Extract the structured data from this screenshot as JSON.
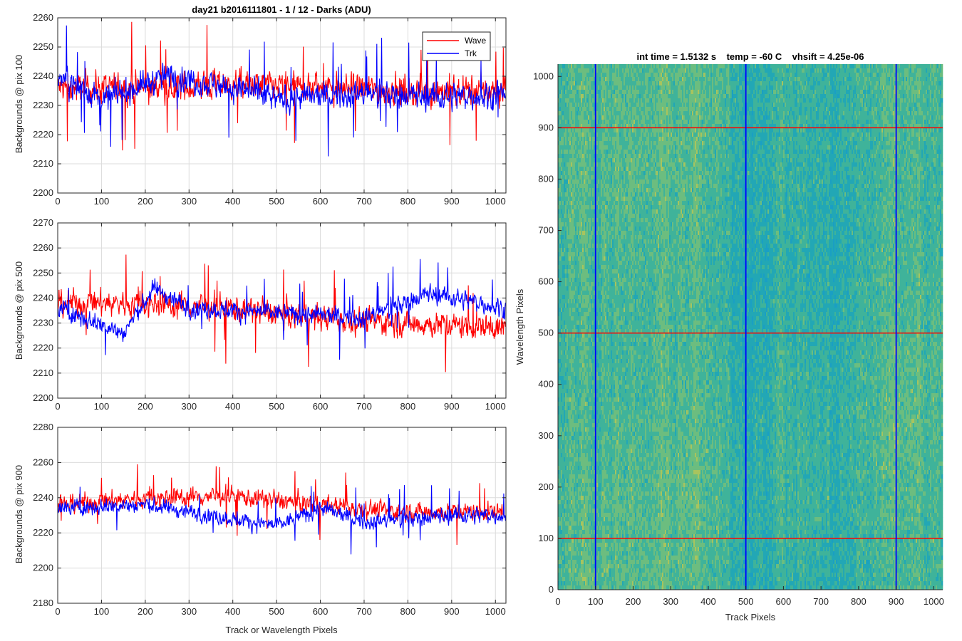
{
  "chart_data": [
    {
      "type": "line",
      "title": "day21 b2016111801 - 1 / 12 - Darks (ADU)",
      "xlabel": "",
      "ylabel": "Backgrounds @ pix 100",
      "xlim": [
        0,
        1024
      ],
      "ylim": [
        2200,
        2260
      ],
      "xticks": [
        0,
        100,
        200,
        300,
        400,
        500,
        600,
        700,
        800,
        900,
        1000
      ],
      "yticks": [
        2200,
        2210,
        2220,
        2230,
        2240,
        2250,
        2260
      ],
      "grid": true,
      "legend_placement": "top-right",
      "series": [
        {
          "name": "Wave",
          "color": "#ff0000",
          "mean": 2235,
          "spread": 7,
          "drift": [
            [
              0,
              2236
            ],
            [
              200,
              2236
            ],
            [
              400,
              2237
            ],
            [
              600,
              2236
            ],
            [
              800,
              2235
            ],
            [
              1024,
              2235
            ]
          ]
        },
        {
          "name": "Trk",
          "color": "#0000ff",
          "mean": 2235,
          "spread": 6,
          "drift": [
            [
              0,
              2240
            ],
            [
              100,
              2232
            ],
            [
              250,
              2240
            ],
            [
              400,
              2236
            ],
            [
              500,
              2232
            ],
            [
              700,
              2234
            ],
            [
              900,
              2233
            ],
            [
              1024,
              2234
            ]
          ]
        }
      ]
    },
    {
      "type": "line",
      "title": "",
      "xlabel": "",
      "ylabel": "Backgrounds @ pix 500",
      "xlim": [
        0,
        1024
      ],
      "ylim": [
        2200,
        2270
      ],
      "xticks": [
        0,
        100,
        200,
        300,
        400,
        500,
        600,
        700,
        800,
        900,
        1000
      ],
      "yticks": [
        2200,
        2210,
        2220,
        2230,
        2240,
        2250,
        2260,
        2270
      ],
      "grid": true,
      "series": [
        {
          "name": "Wave",
          "color": "#ff0000",
          "mean": 2235,
          "spread": 7,
          "drift": [
            [
              0,
              2238
            ],
            [
              200,
              2238
            ],
            [
              400,
              2236
            ],
            [
              600,
              2232
            ],
            [
              800,
              2230
            ],
            [
              1024,
              2228
            ]
          ]
        },
        {
          "name": "Trk",
          "color": "#0000ff",
          "mean": 2235,
          "spread": 5,
          "drift": [
            [
              0,
              2236
            ],
            [
              150,
              2226
            ],
            [
              220,
              2244
            ],
            [
              300,
              2236
            ],
            [
              500,
              2234
            ],
            [
              700,
              2232
            ],
            [
              850,
              2242
            ],
            [
              1024,
              2236
            ]
          ]
        }
      ]
    },
    {
      "type": "line",
      "title": "",
      "xlabel": "Track or Wavelength Pixels",
      "ylabel": "Backgrounds @ pix 900",
      "xlim": [
        0,
        1024
      ],
      "ylim": [
        2180,
        2280
      ],
      "xticks": [
        0,
        100,
        200,
        300,
        400,
        500,
        600,
        700,
        800,
        900,
        1000
      ],
      "yticks": [
        2180,
        2200,
        2220,
        2240,
        2260,
        2280
      ],
      "grid": true,
      "series": [
        {
          "name": "Wave",
          "color": "#ff0000",
          "mean": 2238,
          "spread": 7,
          "drift": [
            [
              0,
              2236
            ],
            [
              200,
              2240
            ],
            [
              400,
              2241
            ],
            [
              600,
              2236
            ],
            [
              800,
              2232
            ],
            [
              1024,
              2232
            ]
          ]
        },
        {
          "name": "Trk",
          "color": "#0000ff",
          "mean": 2230,
          "spread": 6,
          "drift": [
            [
              0,
              2234
            ],
            [
              200,
              2236
            ],
            [
              400,
              2228
            ],
            [
              500,
              2224
            ],
            [
              600,
              2234
            ],
            [
              700,
              2226
            ],
            [
              900,
              2230
            ],
            [
              1024,
              2230
            ]
          ]
        }
      ]
    },
    {
      "type": "heatmap",
      "title": "int time = 1.5132 s    temp = -60 C    vhsift = 4.25e-06",
      "xlabel": "Track Pixels",
      "ylabel": "Wavelength Pixels",
      "xlim": [
        0,
        1024
      ],
      "ylim": [
        0,
        1024
      ],
      "xticks": [
        0,
        100,
        200,
        300,
        400,
        500,
        600,
        700,
        800,
        900,
        1000
      ],
      "yticks": [
        0,
        100,
        200,
        300,
        400,
        500,
        600,
        700,
        800,
        900,
        1000
      ],
      "colormap_colors": [
        "#1a9fc4",
        "#22a7b5",
        "#3fb39a",
        "#6cbd7f",
        "#a8c45e"
      ],
      "horizontal_lines": {
        "color": "#ff0000",
        "values": [
          100,
          500,
          900
        ]
      },
      "vertical_lines": {
        "color": "#0000ff",
        "values": [
          100,
          500,
          900
        ]
      }
    }
  ],
  "legend": {
    "items": [
      {
        "label": "Wave",
        "color": "#ff0000"
      },
      {
        "label": "Trk",
        "color": "#0000ff"
      }
    ]
  }
}
